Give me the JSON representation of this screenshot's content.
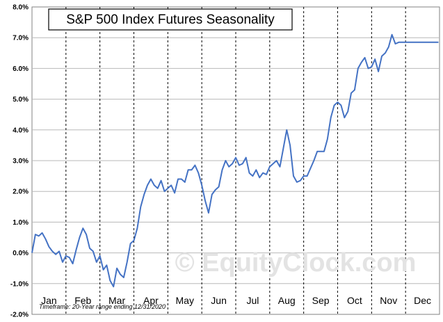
{
  "chart_data": {
    "type": "line",
    "title": "S&P 500 Index Futures Seasonality",
    "xlabel": "",
    "ylabel": "",
    "ylim": [
      -2,
      8
    ],
    "yticks": [
      -2,
      -1,
      0,
      1,
      2,
      3,
      4,
      5,
      6,
      7,
      8
    ],
    "ytick_labels": [
      "-2.0%",
      "-1.0%",
      "0.0%",
      "1.0%",
      "2.0%",
      "3.0%",
      "4.0%",
      "5.0%",
      "6.0%",
      "7.0%",
      "8.0%"
    ],
    "month_labels": [
      "Jan",
      "Feb",
      "Mar",
      "Apr",
      "May",
      "Jun",
      "Jul",
      "Aug",
      "Sep",
      "Oct",
      "Nov",
      "Dec"
    ],
    "grid": true,
    "legend": "none",
    "line_color": "#4472c4",
    "footnote": "Timeframe:  20-Year range ending 12/31/2020",
    "watermark": "© EquityClock.com",
    "series": [
      {
        "x": [
          0.0,
          0.1,
          0.2,
          0.3,
          0.4,
          0.5,
          0.6,
          0.7,
          0.8,
          0.9,
          1.0,
          1.1,
          1.2,
          1.3,
          1.4,
          1.5,
          1.6,
          1.7,
          1.8,
          1.9,
          2.0,
          2.1,
          2.2,
          2.3,
          2.4,
          2.5,
          2.6,
          2.7,
          2.8,
          2.9,
          3.0,
          3.1,
          3.2,
          3.3,
          3.4,
          3.5,
          3.6,
          3.7,
          3.8,
          3.9,
          4.0,
          4.1,
          4.2,
          4.3,
          4.4,
          4.5,
          4.6,
          4.7,
          4.8,
          4.9,
          5.0,
          5.1,
          5.2,
          5.3,
          5.4,
          5.5,
          5.6,
          5.7,
          5.8,
          5.9,
          6.0,
          6.1,
          6.2,
          6.3,
          6.4,
          6.5,
          6.6,
          6.7,
          6.8,
          6.9,
          7.0,
          7.1,
          7.2,
          7.3,
          7.4,
          7.5,
          7.6,
          7.7,
          7.8,
          7.9,
          8.0,
          8.1,
          8.2,
          8.3,
          8.4,
          8.5,
          8.6,
          8.7,
          8.8,
          8.9,
          9.0,
          9.1,
          9.2,
          9.3,
          9.4,
          9.5,
          9.6,
          9.7,
          9.8,
          9.9,
          10.0,
          10.1,
          10.2,
          10.3,
          10.4,
          10.5,
          10.6,
          10.7,
          10.8,
          10.9,
          11.0,
          11.1,
          11.2,
          11.3,
          11.4,
          11.5,
          11.6,
          11.7,
          11.8,
          11.9,
          11.97
        ],
        "y": [
          0.0,
          0.6,
          0.55,
          0.65,
          0.45,
          0.2,
          0.05,
          -0.05,
          0.05,
          -0.3,
          -0.1,
          -0.15,
          -0.35,
          0.1,
          0.5,
          0.8,
          0.6,
          0.15,
          0.05,
          -0.3,
          -0.1,
          -0.55,
          -0.4,
          -0.9,
          -1.1,
          -0.5,
          -0.7,
          -0.8,
          -0.3,
          0.3,
          0.4,
          0.8,
          1.5,
          1.9,
          2.2,
          2.4,
          2.2,
          2.1,
          2.35,
          2.0,
          2.1,
          2.2,
          1.95,
          2.4,
          2.4,
          2.3,
          2.7,
          2.7,
          2.85,
          2.6,
          2.2,
          1.7,
          1.3,
          1.9,
          2.05,
          2.15,
          2.7,
          3.0,
          2.8,
          2.9,
          3.1,
          2.85,
          2.9,
          3.1,
          2.6,
          2.5,
          2.7,
          2.45,
          2.6,
          2.55,
          2.8,
          2.9,
          3.0,
          2.8,
          3.4,
          4.0,
          3.5,
          2.5,
          2.3,
          2.35,
          2.5,
          2.5,
          2.75,
          3.0,
          3.3,
          3.3,
          3.3,
          3.7,
          4.4,
          4.8,
          4.9,
          4.8,
          4.4,
          4.6,
          5.2,
          5.3,
          6.0,
          6.2,
          6.35,
          6.0,
          6.05,
          6.3,
          5.9,
          6.4,
          6.5,
          6.7,
          7.1,
          6.8,
          6.85,
          6.85,
          6.85,
          6.85,
          6.85,
          6.85,
          6.85,
          6.85,
          6.85,
          6.85,
          6.85,
          6.85,
          6.85
        ]
      }
    ]
  }
}
